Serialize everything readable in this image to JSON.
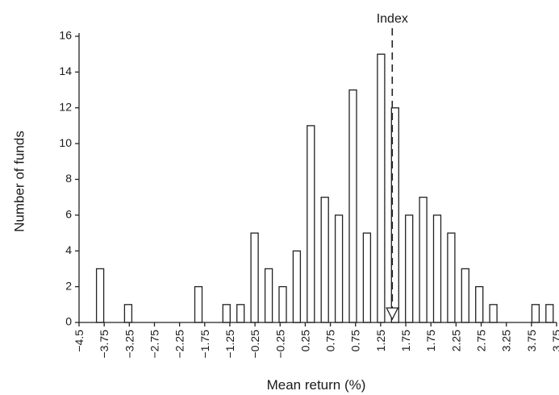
{
  "chart_data": {
    "type": "bar",
    "xlabel": "Mean return (%)",
    "ylabel": "Number of funds",
    "ylim": [
      0,
      16
    ],
    "yticks": [
      0,
      2,
      4,
      6,
      8,
      10,
      12,
      14,
      16
    ],
    "y_tick_labels": [
      "0",
      "2",
      "4",
      "6",
      "8",
      "10",
      "12",
      "14",
      "16"
    ],
    "xlim": [
      -4.625,
      3.875
    ],
    "x_tick_labels": [
      "−4.5",
      "−3.75",
      "−3.25",
      "−2.75",
      "−2.25",
      "−1.75",
      "−1.25",
      "−0.25",
      "−0.25",
      "0.25",
      "0.75",
      "0.75",
      "1.25",
      "1.75",
      "1.75",
      "2.25",
      "2.75",
      "3.25",
      "3.75",
      "3.75"
    ],
    "x": [
      -4.25,
      -3.75,
      -3.25,
      -2.75,
      -2.5,
      -2.0,
      -1.75,
      -1.5,
      -1.25,
      -1.0,
      -0.75,
      -0.5,
      -0.25,
      0.0,
      0.25,
      0.5,
      0.75,
      1.0,
      1.25,
      1.5,
      1.75,
      2.0,
      2.25,
      2.5,
      2.75,
      3.25,
      3.5,
      3.75
    ],
    "values": [
      3,
      1,
      0,
      0,
      2,
      1,
      1,
      5,
      3,
      2,
      4,
      11,
      7,
      6,
      13,
      5,
      15,
      12,
      6,
      7,
      6,
      5,
      3,
      2,
      1,
      0,
      1,
      1
    ],
    "annotation": {
      "label": "Index",
      "x": 0.95,
      "style": "dashed vertical line with downward arrow"
    },
    "grid": false,
    "legend": "none",
    "colors": {
      "bar_fill": "#ffffff",
      "bar_edge": "#222222",
      "axis": "#222222"
    }
  }
}
